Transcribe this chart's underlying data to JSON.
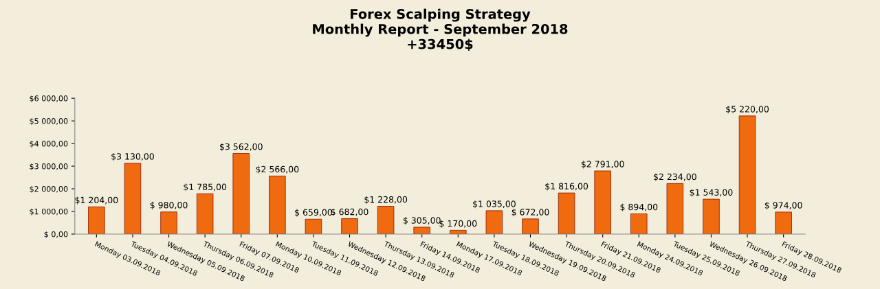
{
  "chart_data": {
    "type": "bar",
    "title": "Forex Scalping Strategy\nMonthly Report - September 2018\n+33450$",
    "categories": [
      "Monday 03.09.2018",
      "Tuesday 04.09.2018",
      "Wednesday 05.09.2018",
      "Thursday 06.09.2018",
      "Friday 07.09.2018",
      "Monday 10.09.2018",
      "Tuesday 11.09.2018",
      "Wednesday 12.09.2018",
      "Thursday 13.09.2018",
      "Friday 14.09.2018",
      "Monday 17.09.2018",
      "Tuesday 18.09.2018",
      "Wednesday 19.09.2018",
      "Thursday 20.09.2018",
      "Friday 21.09.2018",
      "Monday 24.09.2018",
      "Tuesday 25.09.2018",
      "Wednesday 26.09.2018",
      "Thursday 27.09.2018",
      "Friday 28.09.2018"
    ],
    "values": [
      1204,
      3130,
      980,
      1785,
      3562,
      2566,
      659,
      682,
      1228,
      305,
      170,
      1035,
      672,
      1816,
      2791,
      894,
      2234,
      1543,
      5220,
      974
    ],
    "value_labels": [
      "$1 204,00",
      "$3 130,00",
      "$ 980,00",
      "$1 785,00",
      "$3 562,00",
      "$2 566,00",
      "$ 659,00",
      "$ 682,00",
      "$1 228,00",
      "$ 305,00",
      "$ 170,00",
      "$1 035,00",
      "$ 672,00",
      "$1 816,00",
      "$2 791,00",
      "$ 894,00",
      "$2 234,00",
      "$1 543,00",
      "$5 220,00",
      "$ 974,00"
    ],
    "color": "#f06a10",
    "ylim": [
      0,
      6000
    ],
    "yticks": [
      {
        "value": 0,
        "label": "$ 0,00"
      },
      {
        "value": 1000,
        "label": "$1 000,00"
      },
      {
        "value": 2000,
        "label": "$2 000,00"
      },
      {
        "value": 3000,
        "label": "$3 000,00"
      },
      {
        "value": 4000,
        "label": "$4 000,00"
      },
      {
        "value": 5000,
        "label": "$5 000,00"
      },
      {
        "value": 6000,
        "label": "$6 000,00"
      }
    ],
    "grid": false,
    "legend": false
  }
}
